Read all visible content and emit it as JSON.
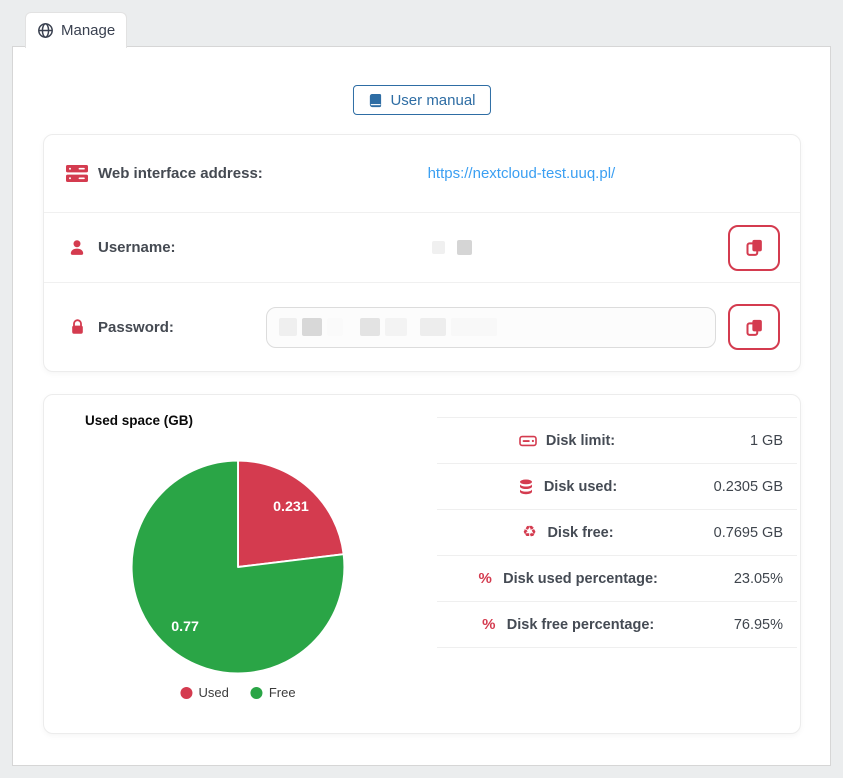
{
  "tab": {
    "label": "Manage",
    "icon": "globe-icon"
  },
  "manual_button": {
    "label": "User manual",
    "icon": "book-icon"
  },
  "credentials": {
    "web_address": {
      "icon": "server-icon",
      "label": "Web interface address:",
      "link": "https://nextcloud-test.uuq.pl/"
    },
    "username": {
      "icon": "user-icon",
      "label": "Username:",
      "value_redacted": true
    },
    "password": {
      "icon": "lock-icon",
      "label": "Password:",
      "value_redacted": true
    },
    "copy_icon": "copy-icon"
  },
  "disk_stats": {
    "rows": [
      {
        "icon": "hdd-icon",
        "label": "Disk limit:",
        "value": "1 GB"
      },
      {
        "icon": "database-icon",
        "label": "Disk used:",
        "value": "0.2305 GB"
      },
      {
        "icon": "recycle-icon",
        "label": "Disk free:",
        "value": "0.7695 GB"
      },
      {
        "icon": "percent-icon",
        "label": "Disk used percentage:",
        "value": "23.05%"
      },
      {
        "icon": "percent-icon",
        "label": "Disk free percentage:",
        "value": "76.95%"
      }
    ]
  },
  "chart_data": {
    "type": "pie",
    "title": "Used space (GB)",
    "labels": [
      "Used",
      "Free"
    ],
    "values": [
      0.231,
      0.77
    ],
    "data_labels": [
      "0.231",
      "0.77"
    ],
    "colors": [
      "#d43b4f",
      "#2aa546"
    ],
    "legend_position": "bottom",
    "data_label_color": "#ffffff"
  },
  "colors": {
    "accent_red": "#d43b4f",
    "accent_green": "#2aa546",
    "link_blue": "#3b9ff2",
    "button_blue": "#2e6da4",
    "page_background": "#ebedee"
  }
}
